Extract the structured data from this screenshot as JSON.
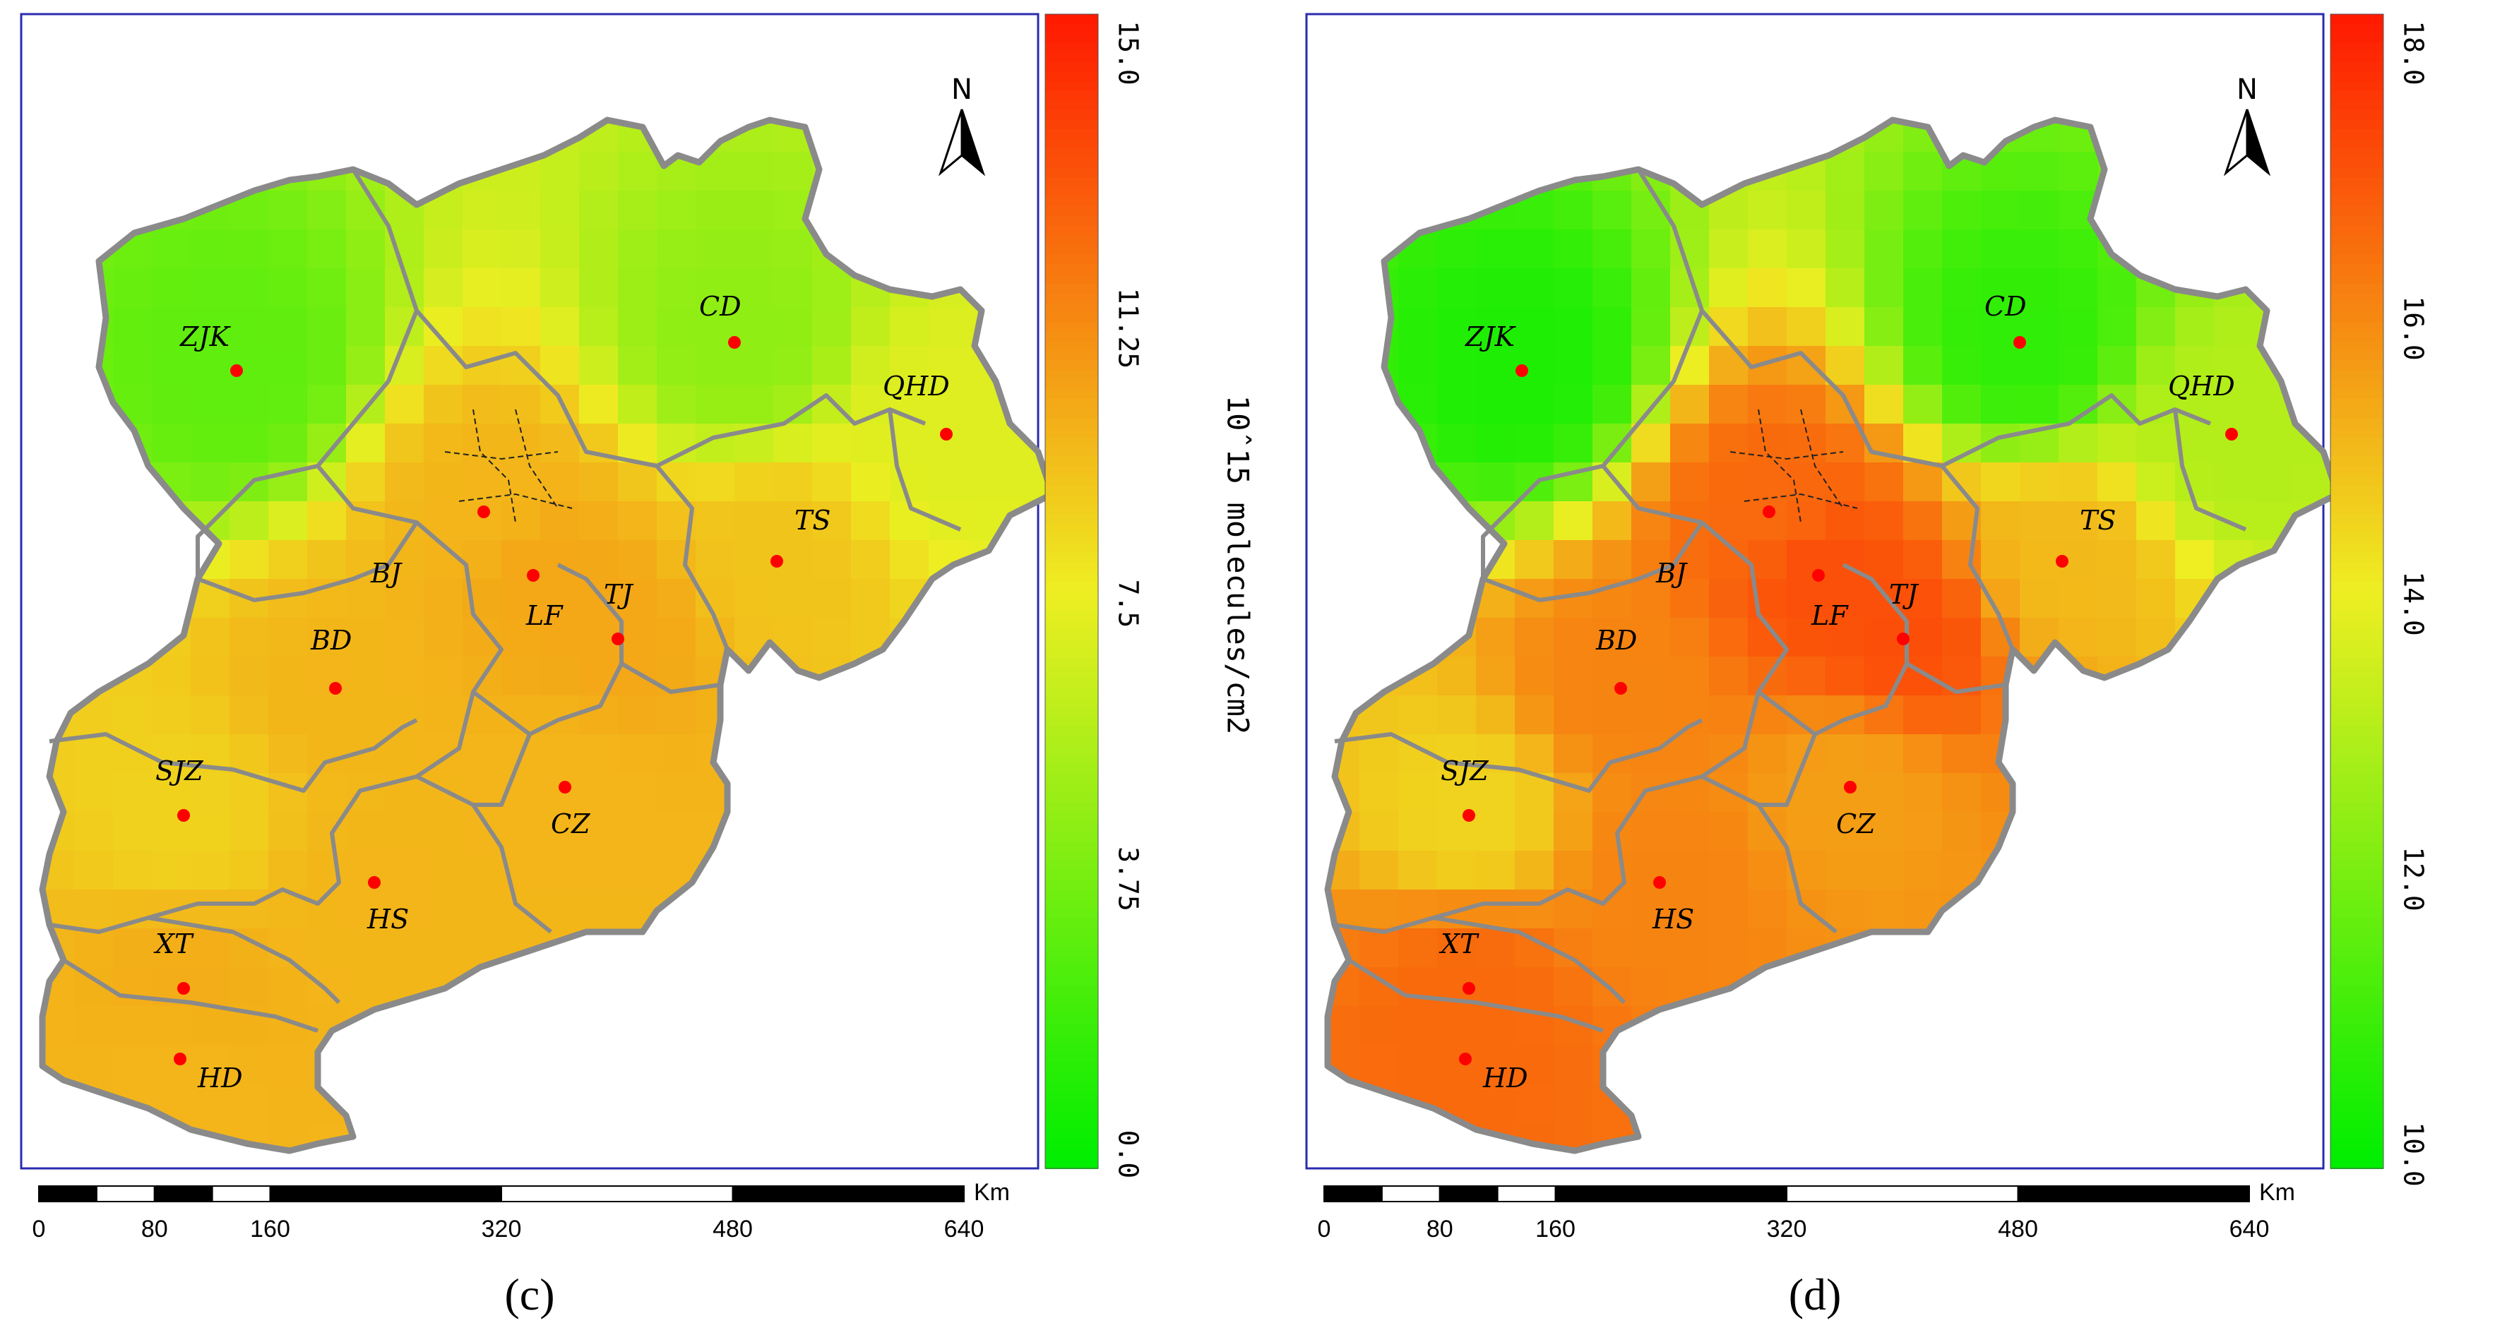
{
  "panels": [
    {
      "id": "c",
      "label": "(c)",
      "unit_label": "10ˆ15 molecules/cm2",
      "colorbar_ticks": [
        "15.0",
        "11.25",
        "7.5",
        "3.75",
        "0.0"
      ],
      "colorbar_range": [
        0.0,
        15.0
      ],
      "colors": {
        "low": "#00ee00",
        "mid": "#eeee22",
        "high": "#ff1a00",
        "boundary": "#8a8a8a",
        "city_dot": "#ff0000",
        "frame": "#2b2bb0"
      },
      "north_label": "N",
      "scale_labels": [
        "0",
        "80",
        "160",
        "320",
        "480",
        "640"
      ],
      "scale_unit": "Km",
      "cities": [
        {
          "code": "ZJK",
          "value": 3.0
        },
        {
          "code": "CD",
          "value": 4.5
        },
        {
          "code": "QHD",
          "value": 7.0
        },
        {
          "code": "BJ",
          "value": 9.5
        },
        {
          "code": "TS",
          "value": 9.0
        },
        {
          "code": "LF",
          "value": 10.0
        },
        {
          "code": "TJ",
          "value": 10.0
        },
        {
          "code": "BD",
          "value": 9.5
        },
        {
          "code": "SJZ",
          "value": 8.5
        },
        {
          "code": "CZ",
          "value": 9.5
        },
        {
          "code": "HS",
          "value": 9.5
        },
        {
          "code": "XT",
          "value": 9.8
        },
        {
          "code": "HD",
          "value": 9.5
        }
      ]
    },
    {
      "id": "d",
      "label": "(d)",
      "unit_label": "10ˆ15 molecules/cm2",
      "colorbar_ticks": [
        "18.0",
        "16.0",
        "14.0",
        "12.0",
        "10.0"
      ],
      "colorbar_range": [
        10.0,
        18.0
      ],
      "colors": {
        "low": "#00ee00",
        "mid": "#eeee22",
        "high": "#ff1a00",
        "boundary": "#8a8a8a",
        "city_dot": "#ff0000",
        "frame": "#2b2bb0"
      },
      "north_label": "N",
      "scale_labels": [
        "0",
        "80",
        "160",
        "320",
        "480",
        "640"
      ],
      "scale_unit": "Km",
      "cities": [
        {
          "code": "ZJK",
          "value": 10.5
        },
        {
          "code": "CD",
          "value": 10.8
        },
        {
          "code": "QHD",
          "value": 13.0
        },
        {
          "code": "BJ",
          "value": 16.5
        },
        {
          "code": "TS",
          "value": 15.0
        },
        {
          "code": "LF",
          "value": 17.0
        },
        {
          "code": "TJ",
          "value": 17.0
        },
        {
          "code": "BD",
          "value": 16.0
        },
        {
          "code": "SJZ",
          "value": 14.5
        },
        {
          "code": "CZ",
          "value": 15.5
        },
        {
          "code": "HS",
          "value": 16.0
        },
        {
          "code": "XT",
          "value": 16.5
        },
        {
          "code": "HD",
          "value": 16.5
        }
      ]
    }
  ]
}
